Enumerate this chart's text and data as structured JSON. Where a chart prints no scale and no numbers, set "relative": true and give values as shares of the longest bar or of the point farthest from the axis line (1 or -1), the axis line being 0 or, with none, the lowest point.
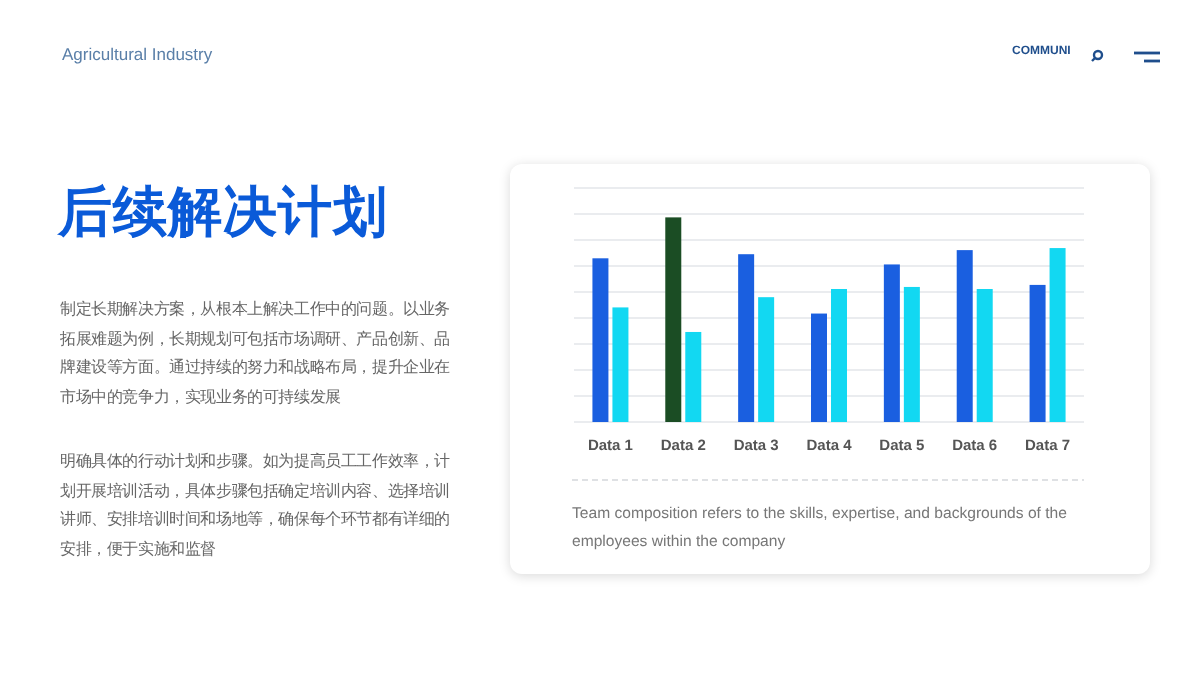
{
  "chart_data": {
    "type": "bar",
    "relative": true,
    "title": "后续解决计划",
    "categories": [
      "Data 1",
      "Data 2",
      "Data 3",
      "Data 4",
      "Data 5",
      "Data 6",
      "Data 7"
    ],
    "series": [
      {
        "colors": [
          "#1a5fe0",
          "#1b4d24",
          "#1a5fe0",
          "#1a5fe0",
          "#1a5fe0",
          "#1a5fe0",
          "#1a5fe0"
        ],
        "values": [
          0.8,
          1,
          0.82,
          0.53,
          0.77,
          0.84,
          0.67
        ]
      },
      {
        "color": "#12d8f2",
        "values": [
          0.56,
          0.44,
          0.61,
          0.65,
          0.66,
          0.65,
          0.85
        ]
      }
    ],
    "grid": "y",
    "annotations": [
      "Agricultural Industry",
      "COMMUNI",
      "制定长期解决方案，从根本上解决工作中的问题。以业务拓展难题为例，长期规划可包括市场调研、产品创新、品牌建设等方面。通过持续的努力和战略布局，提升企业在市场中的竞争力，实现业务的可持续发展",
      "明确具体的行动计划和步骤。如为提高员工工作效率，计划开展培训活动，具体步骤包括确定培训内容、选择培训讲师、安排培训时间和场地等，确保每个环节都有详细的安排，便于实施和监督",
      "Team composition refers to the skills, expertise, and backgrounds of the employees within the company"
    ]
  }
}
